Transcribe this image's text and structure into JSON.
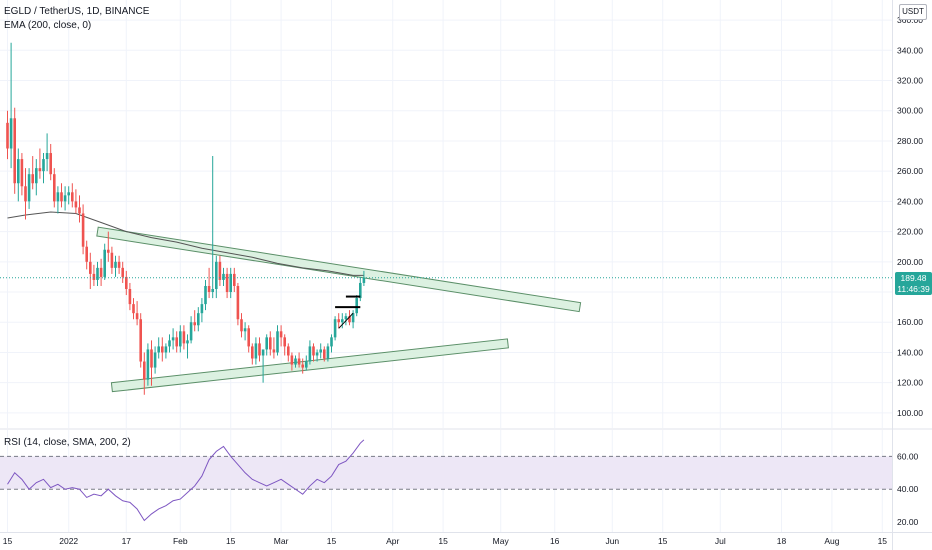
{
  "header": {
    "symbol_line": "EGLD / TetherUS, 1D, BINANCE",
    "ema_label": "EMA (200, close, 0)",
    "currency": "USDT",
    "rsi_label": "RSI (14, close, SMA, 200, 2)"
  },
  "price_badge": {
    "price": "189.48",
    "countdown": "11:46:39"
  },
  "colors": {
    "up": "#26a69a",
    "down": "#ef5350",
    "ema": "#555555",
    "rsi_line": "#7e57c2",
    "rsi_band": "#ede7f6",
    "channel_fill": "#d6efdc",
    "channel_stroke": "#5b8f68"
  },
  "chart_data": [
    {
      "type": "candlestick",
      "title": "EGLD / TetherUS, 1D, BINANCE",
      "y_axis": {
        "ticks": [
          100,
          120,
          140,
          160,
          180,
          200,
          220,
          240,
          260,
          280,
          300,
          320,
          340,
          360
        ],
        "ylim": [
          90,
          368
        ]
      },
      "x_axis": {
        "ticks": [
          {
            "label": "15",
            "date": "2021-12-15"
          },
          {
            "label": "2022",
            "date": "2022-01-01"
          },
          {
            "label": "17",
            "date": "2022-01-17"
          },
          {
            "label": "Feb",
            "date": "2022-02-01"
          },
          {
            "label": "15",
            "date": "2022-02-15"
          },
          {
            "label": "Mar",
            "date": "2022-03-01"
          },
          {
            "label": "15",
            "date": "2022-03-15"
          },
          {
            "label": "Apr",
            "date": "2022-04-01"
          },
          {
            "label": "15",
            "date": "2022-04-15"
          },
          {
            "label": "May",
            "date": "2022-05-01"
          },
          {
            "label": "16",
            "date": "2022-05-16"
          },
          {
            "label": "Jun",
            "date": "2022-06-01"
          },
          {
            "label": "15",
            "date": "2022-06-15"
          },
          {
            "label": "Jul",
            "date": "2022-07-01"
          },
          {
            "label": "18",
            "date": "2022-07-18"
          },
          {
            "label": "Aug",
            "date": "2022-08-01"
          },
          {
            "label": "15",
            "date": "2022-08-15"
          }
        ]
      },
      "candles": [
        [
          "2021-12-15",
          292,
          300,
          268,
          275
        ],
        [
          "2021-12-16",
          275,
          345,
          262,
          295
        ],
        [
          "2021-12-17",
          295,
          302,
          245,
          252
        ],
        [
          "2021-12-18",
          252,
          275,
          240,
          268
        ],
        [
          "2021-12-19",
          268,
          272,
          244,
          250
        ],
        [
          "2021-12-20",
          250,
          262,
          228,
          240
        ],
        [
          "2021-12-21",
          240,
          262,
          235,
          258
        ],
        [
          "2021-12-22",
          258,
          270,
          248,
          252
        ],
        [
          "2021-12-23",
          252,
          268,
          244,
          262
        ],
        [
          "2021-12-24",
          262,
          275,
          255,
          260
        ],
        [
          "2021-12-25",
          260,
          272,
          252,
          268
        ],
        [
          "2021-12-26",
          268,
          285,
          260,
          272
        ],
        [
          "2021-12-27",
          272,
          278,
          254,
          258
        ],
        [
          "2021-12-28",
          258,
          262,
          236,
          240
        ],
        [
          "2021-12-29",
          240,
          250,
          232,
          246
        ],
        [
          "2021-12-30",
          246,
          252,
          236,
          240
        ],
        [
          "2021-12-31",
          240,
          250,
          234,
          244
        ],
        [
          "2022-01-01",
          244,
          250,
          238,
          246
        ],
        [
          "2022-01-02",
          246,
          252,
          236,
          240
        ],
        [
          "2022-01-03",
          240,
          248,
          232,
          236
        ],
        [
          "2022-01-04",
          236,
          244,
          226,
          232
        ],
        [
          "2022-01-05",
          232,
          238,
          205,
          210
        ],
        [
          "2022-01-06",
          210,
          214,
          195,
          200
        ],
        [
          "2022-01-07",
          200,
          206,
          182,
          192
        ],
        [
          "2022-01-08",
          192,
          198,
          184,
          188
        ],
        [
          "2022-01-09",
          188,
          200,
          184,
          196
        ],
        [
          "2022-01-10",
          196,
          202,
          184,
          190
        ],
        [
          "2022-01-11",
          190,
          212,
          188,
          208
        ],
        [
          "2022-01-12",
          208,
          220,
          200,
          206
        ],
        [
          "2022-01-13",
          206,
          210,
          192,
          196
        ],
        [
          "2022-01-14",
          196,
          204,
          190,
          200
        ],
        [
          "2022-01-15",
          200,
          204,
          192,
          196
        ],
        [
          "2022-01-16",
          196,
          200,
          186,
          190
        ],
        [
          "2022-01-17",
          190,
          194,
          178,
          182
        ],
        [
          "2022-01-18",
          182,
          186,
          168,
          172
        ],
        [
          "2022-01-19",
          172,
          176,
          162,
          166
        ],
        [
          "2022-01-20",
          166,
          174,
          158,
          162
        ],
        [
          "2022-01-21",
          162,
          166,
          130,
          134
        ],
        [
          "2022-01-22",
          134,
          140,
          112,
          122
        ],
        [
          "2022-01-23",
          122,
          146,
          118,
          142
        ],
        [
          "2022-01-24",
          142,
          148,
          118,
          130
        ],
        [
          "2022-01-25",
          130,
          144,
          126,
          140
        ],
        [
          "2022-01-26",
          140,
          150,
          136,
          144
        ],
        [
          "2022-01-27",
          144,
          150,
          134,
          140
        ],
        [
          "2022-01-28",
          140,
          146,
          136,
          144
        ],
        [
          "2022-01-29",
          144,
          152,
          140,
          148
        ],
        [
          "2022-01-30",
          148,
          156,
          142,
          150
        ],
        [
          "2022-01-31",
          150,
          154,
          140,
          144
        ],
        [
          "2022-02-01",
          144,
          158,
          140,
          154
        ],
        [
          "2022-02-02",
          154,
          158,
          142,
          146
        ],
        [
          "2022-02-03",
          146,
          152,
          136,
          148
        ],
        [
          "2022-02-04",
          148,
          164,
          146,
          160
        ],
        [
          "2022-02-05",
          160,
          168,
          154,
          158
        ],
        [
          "2022-02-06",
          158,
          170,
          154,
          166
        ],
        [
          "2022-02-07",
          166,
          176,
          160,
          172
        ],
        [
          "2022-02-08",
          172,
          188,
          168,
          184
        ],
        [
          "2022-02-09",
          184,
          196,
          176,
          180
        ],
        [
          "2022-02-10",
          180,
          270,
          176,
          182
        ],
        [
          "2022-02-11",
          182,
          204,
          176,
          200
        ],
        [
          "2022-02-12",
          200,
          204,
          184,
          188
        ],
        [
          "2022-02-13",
          188,
          196,
          184,
          192
        ],
        [
          "2022-02-14",
          192,
          196,
          176,
          180
        ],
        [
          "2022-02-15",
          180,
          196,
          176,
          192
        ],
        [
          "2022-02-16",
          192,
          196,
          180,
          184
        ],
        [
          "2022-02-17",
          184,
          186,
          158,
          162
        ],
        [
          "2022-02-18",
          162,
          166,
          150,
          154
        ],
        [
          "2022-02-19",
          154,
          160,
          148,
          156
        ],
        [
          "2022-02-20",
          156,
          158,
          140,
          144
        ],
        [
          "2022-02-21",
          144,
          146,
          132,
          136
        ],
        [
          "2022-02-22",
          136,
          150,
          132,
          146
        ],
        [
          "2022-02-23",
          146,
          150,
          134,
          138
        ],
        [
          "2022-02-24",
          138,
          140,
          120,
          142
        ],
        [
          "2022-02-25",
          142,
          152,
          138,
          150
        ],
        [
          "2022-02-26",
          150,
          154,
          138,
          142
        ],
        [
          "2022-02-27",
          142,
          150,
          136,
          140
        ],
        [
          "2022-02-28",
          140,
          158,
          138,
          154
        ],
        [
          "2022-03-01",
          154,
          158,
          144,
          150
        ],
        [
          "2022-03-02",
          150,
          152,
          138,
          144
        ],
        [
          "2022-03-03",
          144,
          146,
          134,
          138
        ],
        [
          "2022-03-04",
          138,
          140,
          128,
          132
        ],
        [
          "2022-03-05",
          132,
          138,
          130,
          136
        ],
        [
          "2022-03-06",
          136,
          140,
          130,
          132
        ],
        [
          "2022-03-07",
          132,
          136,
          126,
          130
        ],
        [
          "2022-03-08",
          130,
          138,
          128,
          134
        ],
        [
          "2022-03-09",
          134,
          148,
          132,
          144
        ],
        [
          "2022-03-10",
          144,
          146,
          134,
          138
        ],
        [
          "2022-03-11",
          138,
          142,
          134,
          140
        ],
        [
          "2022-03-12",
          140,
          146,
          136,
          142
        ],
        [
          "2022-03-13",
          142,
          144,
          134,
          136
        ],
        [
          "2022-03-14",
          136,
          146,
          134,
          144
        ],
        [
          "2022-03-15",
          144,
          152,
          140,
          150
        ],
        [
          "2022-03-16",
          150,
          164,
          148,
          162
        ],
        [
          "2022-03-17",
          162,
          166,
          156,
          160
        ],
        [
          "2022-03-18",
          160,
          166,
          156,
          162
        ],
        [
          "2022-03-19",
          162,
          166,
          158,
          164
        ],
        [
          "2022-03-20",
          164,
          168,
          158,
          160
        ],
        [
          "2022-03-21",
          160,
          168,
          156,
          166
        ],
        [
          "2022-03-22",
          166,
          178,
          164,
          176
        ],
        [
          "2022-03-23",
          176,
          190,
          174,
          186
        ],
        [
          "2022-03-24",
          186,
          194,
          184,
          189.48
        ]
      ],
      "ema_200": [
        [
          "2021-12-15",
          229
        ],
        [
          "2021-12-20",
          231
        ],
        [
          "2021-12-27",
          233
        ],
        [
          "2022-01-03",
          232
        ],
        [
          "2022-01-10",
          226
        ],
        [
          "2022-01-17",
          220
        ],
        [
          "2022-01-24",
          216
        ],
        [
          "2022-01-31",
          213
        ],
        [
          "2022-02-07",
          209
        ],
        [
          "2022-02-14",
          206
        ],
        [
          "2022-02-21",
          203
        ],
        [
          "2022-02-28",
          199
        ],
        [
          "2022-03-07",
          196
        ],
        [
          "2022-03-14",
          194
        ],
        [
          "2022-03-21",
          191
        ],
        [
          "2022-03-24",
          191
        ]
      ],
      "trendlines": [
        {
          "name": "upper-channel",
          "from": [
            "2022-01-09",
            220
          ],
          "to": [
            "2022-05-23",
            170
          ],
          "width": 4.5
        },
        {
          "name": "lower-channel",
          "from": [
            "2022-01-13",
            117
          ],
          "to": [
            "2022-05-03",
            146
          ],
          "width": 4.5
        }
      ],
      "markers": [
        {
          "name": "level-1",
          "from": "2022-03-16",
          "to": "2022-03-23",
          "y": 170
        },
        {
          "name": "level-2",
          "from": "2022-03-19",
          "to": "2022-03-23",
          "y": 177
        }
      ],
      "last_price": 189.48
    },
    {
      "type": "line",
      "title": "RSI (14, close, SMA, 200, 2)",
      "y_axis": {
        "ticks": [
          20,
          40,
          60
        ],
        "ylim": [
          14,
          76
        ]
      },
      "band": [
        40,
        60
      ],
      "series": [
        {
          "values": [
            [
              "2021-12-15",
              43
            ],
            [
              "2021-12-17",
              50
            ],
            [
              "2021-12-19",
              46
            ],
            [
              "2021-12-21",
              40
            ],
            [
              "2021-12-23",
              44
            ],
            [
              "2021-12-25",
              46
            ],
            [
              "2021-12-27",
              41
            ],
            [
              "2021-12-29",
              43
            ],
            [
              "2021-12-31",
              40
            ],
            [
              "2022-01-02",
              41
            ],
            [
              "2022-01-04",
              40
            ],
            [
              "2022-01-06",
              35
            ],
            [
              "2022-01-08",
              37
            ],
            [
              "2022-01-10",
              36
            ],
            [
              "2022-01-12",
              40
            ],
            [
              "2022-01-14",
              36
            ],
            [
              "2022-01-16",
              33
            ],
            [
              "2022-01-18",
              32
            ],
            [
              "2022-01-20",
              28
            ],
            [
              "2022-01-22",
              21
            ],
            [
              "2022-01-24",
              25
            ],
            [
              "2022-01-26",
              28
            ],
            [
              "2022-01-28",
              30
            ],
            [
              "2022-01-30",
              33
            ],
            [
              "2022-02-01",
              34
            ],
            [
              "2022-02-03",
              38
            ],
            [
              "2022-02-05",
              42
            ],
            [
              "2022-02-07",
              48
            ],
            [
              "2022-02-09",
              58
            ],
            [
              "2022-02-11",
              63
            ],
            [
              "2022-02-13",
              66
            ],
            [
              "2022-02-15",
              60
            ],
            [
              "2022-02-17",
              55
            ],
            [
              "2022-02-19",
              50
            ],
            [
              "2022-02-21",
              46
            ],
            [
              "2022-02-23",
              44
            ],
            [
              "2022-02-25",
              42
            ],
            [
              "2022-02-27",
              44
            ],
            [
              "2022-03-01",
              46
            ],
            [
              "2022-03-03",
              43
            ],
            [
              "2022-03-05",
              40
            ],
            [
              "2022-03-07",
              37
            ],
            [
              "2022-03-09",
              42
            ],
            [
              "2022-03-11",
              46
            ],
            [
              "2022-03-13",
              44
            ],
            [
              "2022-03-15",
              48
            ],
            [
              "2022-03-17",
              55
            ],
            [
              "2022-03-19",
              57
            ],
            [
              "2022-03-21",
              62
            ],
            [
              "2022-03-23",
              68
            ],
            [
              "2022-03-24",
              70
            ]
          ]
        }
      ]
    }
  ]
}
